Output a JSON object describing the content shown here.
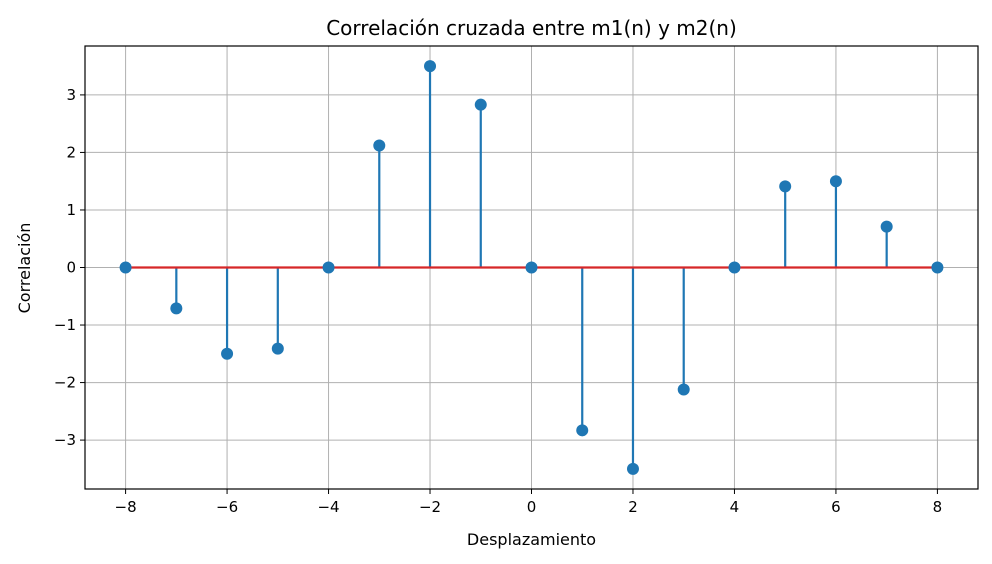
{
  "chart_data": {
    "type": "stem",
    "title": "Correlación cruzada entre m1(n) y m2(n)",
    "xlabel": "Desplazamiento",
    "ylabel": "Correlación",
    "x": [
      -8,
      -7,
      -6,
      -5,
      -4,
      -3,
      -2,
      -1,
      0,
      1,
      2,
      3,
      4,
      5,
      6,
      7,
      8
    ],
    "values": [
      0,
      -0.71,
      -1.5,
      -1.41,
      0,
      2.12,
      3.5,
      2.83,
      0,
      -2.83,
      -3.5,
      -2.12,
      0,
      1.41,
      1.5,
      0.71,
      0
    ],
    "xlim": [
      -8.8,
      8.8
    ],
    "ylim": [
      -3.85,
      3.85
    ],
    "xticks": [
      -8,
      -6,
      -4,
      -2,
      0,
      2,
      4,
      6,
      8
    ],
    "xtick_labels": [
      "−8",
      "−6",
      "−4",
      "−2",
      "0",
      "2",
      "4",
      "6",
      "8"
    ],
    "yticks": [
      -3,
      -2,
      -1,
      0,
      1,
      2,
      3
    ],
    "ytick_labels": [
      "−3",
      "−2",
      "−1",
      "0",
      "1",
      "2",
      "3"
    ],
    "grid": true,
    "colors": {
      "stem": "#1f77b4",
      "marker": "#1f77b4",
      "baseline": "#d62728",
      "grid": "#b0b0b0"
    }
  }
}
